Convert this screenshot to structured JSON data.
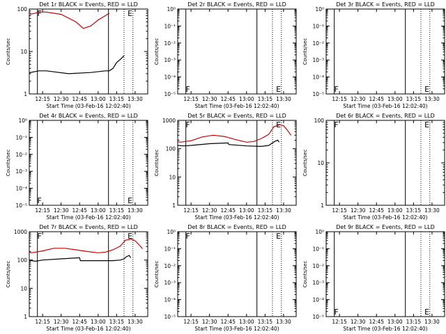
{
  "chart_data": [
    {
      "type": "line",
      "title": "Det 1r BLACK = Events, RED = LLD",
      "xlabel": "Start Time (03-Feb-16 12:02:40)",
      "ylabel": "Counts/sec",
      "xticks": [
        "12:15",
        "12:30",
        "12:45",
        "13:00",
        "13:15",
        "13:30"
      ],
      "yticks": [
        "1",
        "10",
        "100"
      ],
      "ylim": [
        1,
        100
      ],
      "log_y": true,
      "xlim": [
        12.07,
        13.67
      ],
      "flare_lines": [
        12.18,
        13.14
      ],
      "dotted_lines": [
        13.35,
        13.47
      ],
      "markers": [
        "F",
        "E"
      ],
      "marker_hours": [
        12.15,
        13.37
      ],
      "marker_pos": "top",
      "series": [
        {
          "color": "#cc0000",
          "x": [
            12.08,
            12.15,
            12.2,
            12.3,
            12.5,
            12.7,
            12.8,
            12.9,
            13.0,
            13.1,
            13.15
          ],
          "values": [
            75,
            80,
            85,
            85,
            75,
            50,
            35,
            40,
            55,
            70,
            80
          ]
        },
        {
          "color": "#000000",
          "x": [
            12.0,
            12.2,
            12.3,
            12.6,
            12.9,
            13.1,
            13.15,
            13.2,
            13.25,
            13.3,
            13.35
          ],
          "values": [
            3.0,
            3.5,
            3.5,
            3.0,
            3.2,
            3.5,
            3.5,
            4.0,
            5.5,
            6.5,
            8.0
          ]
        }
      ]
    },
    {
      "type": "line",
      "title": "Det 2r BLACK = Events, RED = LLD",
      "xlabel": "Start Time (03-Feb-16 12:02:40)",
      "ylabel": "Counts/sec",
      "xticks": [
        "12:15",
        "12:30",
        "12:45",
        "13:00",
        "13:15",
        "13:30"
      ],
      "yticks": [
        "10⁰",
        "10⁻¹",
        "10⁻²",
        "10⁻³",
        "10⁻⁴",
        "10⁻⁵"
      ],
      "ylim": [
        1e-05,
        1
      ],
      "log_y": true,
      "xlim": [
        12.07,
        13.67
      ],
      "flare_lines": [
        12.18,
        13.14
      ],
      "dotted_lines": [
        13.35,
        13.47
      ],
      "markers": [
        "F",
        "E"
      ],
      "marker_hours": [
        12.15,
        13.37
      ],
      "marker_pos": "bottom",
      "series": []
    },
    {
      "type": "line",
      "title": "Det 3r BLACK = Events, RED = LLD",
      "xlabel": "Start Time (03-Feb-16 12:02:40)",
      "ylabel": "Counts/sec",
      "xticks": [
        "12:15",
        "12:30",
        "12:45",
        "13:00",
        "13:15",
        "13:30"
      ],
      "yticks": [
        "10⁰",
        "10⁻¹",
        "10⁻²",
        "10⁻³",
        "10⁻⁴",
        "10⁻⁵"
      ],
      "ylim": [
        1e-05,
        1
      ],
      "log_y": true,
      "xlim": [
        12.07,
        13.67
      ],
      "flare_lines": [
        12.18,
        13.14
      ],
      "dotted_lines": [
        13.35,
        13.47
      ],
      "markers": [
        "F",
        "E"
      ],
      "marker_hours": [
        12.15,
        13.37
      ],
      "marker_pos": "bottom",
      "series": []
    },
    {
      "type": "line",
      "title": "Det 4r BLACK = Events, RED = LLD",
      "xlabel": "Start Time (03-Feb-16 12:02:40)",
      "ylabel": "Counts/sec",
      "xticks": [
        "12:15",
        "12:30",
        "12:45",
        "13:00",
        "13:15",
        "13:30"
      ],
      "yticks": [
        "10⁰",
        "10⁻¹",
        "10⁻²",
        "10⁻³",
        "10⁻⁴",
        "10⁻⁵"
      ],
      "ylim": [
        1e-05,
        1
      ],
      "log_y": true,
      "xlim": [
        12.07,
        13.67
      ],
      "flare_lines": [
        12.18,
        13.14
      ],
      "dotted_lines": [
        13.35,
        13.47
      ],
      "markers": [
        "F",
        "E"
      ],
      "marker_hours": [
        12.15,
        13.37
      ],
      "marker_pos": "bottom",
      "series": []
    },
    {
      "type": "line",
      "title": "Det 5r BLACK = Events, RED = LLD",
      "xlabel": "Start Time (03-Feb-16 12:02:40)",
      "ylabel": "Counts/sec",
      "xticks": [
        "12:15",
        "12:30",
        "12:45",
        "13:00",
        "13:15",
        "13:30"
      ],
      "yticks": [
        "1",
        "10",
        "100",
        "1000"
      ],
      "ylim": [
        1,
        1000
      ],
      "log_y": true,
      "xlim": [
        12.07,
        13.67
      ],
      "flare_lines": [
        12.18,
        13.14
      ],
      "dotted_lines": [
        13.35,
        13.47
      ],
      "markers": [
        "F",
        "E"
      ],
      "marker_hours": [
        12.15,
        13.37
      ],
      "marker_pos": "top",
      "series": [
        {
          "color": "#cc0000",
          "x": [
            12.0,
            12.1,
            12.25,
            12.4,
            12.55,
            12.7,
            12.85,
            13.0,
            13.1,
            13.2,
            13.3,
            13.37,
            13.45,
            13.5,
            13.55,
            13.6
          ],
          "values": [
            200,
            170,
            190,
            260,
            300,
            270,
            210,
            170,
            180,
            230,
            320,
            600,
            700,
            650,
            450,
            300
          ]
        },
        {
          "color": "#000000",
          "x": [
            12.07,
            12.15,
            12.25,
            12.5,
            12.75,
            12.76,
            13.0,
            13.2,
            13.3,
            13.35,
            13.38,
            13.42,
            13.44
          ],
          "values": [
            130,
            125,
            130,
            150,
            160,
            140,
            125,
            120,
            130,
            160,
            180,
            200,
            170
          ]
        }
      ]
    },
    {
      "type": "line",
      "title": "Det 6r BLACK = Events, RED = LLD",
      "xlabel": "Start Time (03-Feb-16 12:02:40)",
      "ylabel": "Counts/sec",
      "xticks": [
        "12:15",
        "12:30",
        "12:45",
        "13:00",
        "13:15",
        "13:30"
      ],
      "yticks": [
        "1",
        "10",
        "100"
      ],
      "ylim": [
        1,
        100
      ],
      "log_y": true,
      "xlim": [
        12.07,
        13.67
      ],
      "flare_lines": [
        12.18,
        13.14
      ],
      "dotted_lines": [
        13.35,
        13.47
      ],
      "markers": [
        "F",
        "E"
      ],
      "marker_hours": [
        12.15,
        13.37
      ],
      "marker_pos": "top",
      "series": []
    },
    {
      "type": "line",
      "title": "Det 7r BLACK = Events, RED = LLD",
      "xlabel": "Start Time (03-Feb-16 12:02:40)",
      "ylabel": "Counts/sec",
      "xticks": [
        "12:15",
        "12:30",
        "12:45",
        "13:00",
        "13:15",
        "13:30"
      ],
      "yticks": [
        "1",
        "10",
        "100",
        "1000"
      ],
      "ylim": [
        1,
        1000
      ],
      "log_y": true,
      "xlim": [
        12.07,
        13.67
      ],
      "flare_lines": [
        12.18,
        13.14
      ],
      "dotted_lines": [
        13.35,
        13.47
      ],
      "markers": [
        "F",
        "E"
      ],
      "marker_hours": [
        12.15,
        13.37
      ],
      "marker_pos": "top",
      "series": [
        {
          "color": "#cc0000",
          "x": [
            12.0,
            12.1,
            12.25,
            12.4,
            12.55,
            12.7,
            12.85,
            13.0,
            13.1,
            13.2,
            13.3,
            13.37,
            13.45,
            13.5,
            13.55,
            13.6
          ],
          "values": [
            200,
            180,
            210,
            260,
            260,
            230,
            200,
            180,
            190,
            230,
            310,
            500,
            550,
            480,
            350,
            250
          ]
        },
        {
          "color": "#000000",
          "x": [
            12.07,
            12.15,
            12.25,
            12.5,
            12.75,
            12.76,
            13.0,
            13.2,
            13.3,
            13.35,
            13.38,
            13.42,
            13.44
          ],
          "values": [
            100,
            90,
            100,
            110,
            120,
            95,
            95,
            95,
            100,
            110,
            130,
            145,
            120
          ]
        }
      ]
    },
    {
      "type": "line",
      "title": "Det 8r BLACK = Events, RED = LLD",
      "xlabel": "Start Time (03-Feb-16 12:02:40)",
      "ylabel": "Counts/sec",
      "xticks": [
        "12:15",
        "12:30",
        "12:45",
        "13:00",
        "13:15",
        "13:30"
      ],
      "yticks": [
        "10⁰",
        "10⁻¹",
        "10⁻²",
        "10⁻³",
        "10⁻⁴",
        "10⁻⁵"
      ],
      "ylim": [
        1e-05,
        1
      ],
      "log_y": true,
      "xlim": [
        12.07,
        13.67
      ],
      "flare_lines": [
        12.18,
        13.14
      ],
      "dotted_lines": [
        13.35,
        13.47
      ],
      "markers": [
        "F",
        "E"
      ],
      "marker_hours": [
        12.15,
        13.37
      ],
      "marker_pos": "top",
      "series": []
    },
    {
      "type": "line",
      "title": "Det 9r BLACK = Events, RED = LLD",
      "xlabel": "Start Time (03-Feb-16 12:02:40)",
      "ylabel": "Counts/sec",
      "xticks": [
        "12:15",
        "12:30",
        "12:45",
        "13:00",
        "13:15",
        "13:30"
      ],
      "yticks": [
        "10⁰",
        "10⁻¹",
        "10⁻²",
        "10⁻³",
        "10⁻⁴",
        "10⁻⁵"
      ],
      "ylim": [
        1e-05,
        1
      ],
      "log_y": true,
      "xlim": [
        12.07,
        13.67
      ],
      "flare_lines": [
        12.18,
        13.14
      ],
      "dotted_lines": [
        13.35,
        13.47
      ],
      "markers": [
        "F",
        "E"
      ],
      "marker_hours": [
        12.15,
        13.37
      ],
      "marker_pos": "bottom",
      "series": []
    }
  ]
}
